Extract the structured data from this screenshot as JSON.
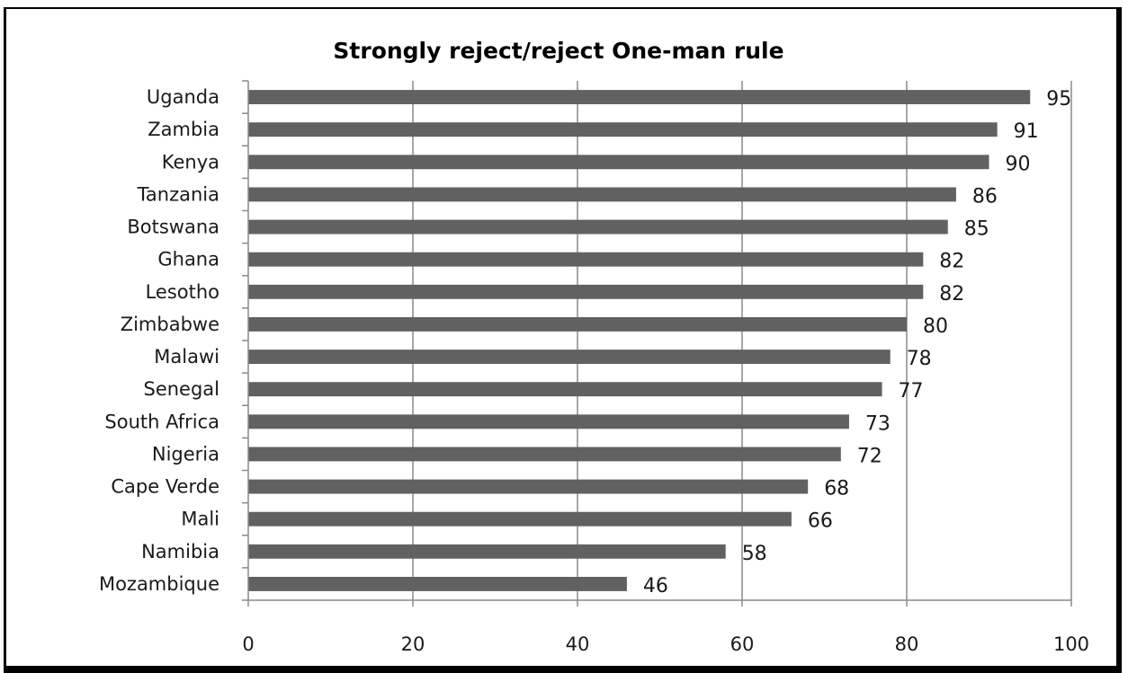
{
  "chart_data": {
    "type": "bar",
    "orientation": "horizontal",
    "title": "Strongly reject/reject One-man rule",
    "categories": [
      "Uganda",
      "Zambia",
      "Kenya",
      "Tanzania",
      "Botswana",
      "Ghana",
      "Lesotho",
      "Zimbabwe",
      "Malawi",
      "Senegal",
      "South Africa",
      "Nigeria",
      "Cape Verde",
      "Mali",
      "Namibia",
      "Mozambique"
    ],
    "values": [
      95,
      91,
      90,
      86,
      85,
      82,
      82,
      80,
      78,
      77,
      73,
      72,
      68,
      66,
      58,
      46
    ],
    "xlim": [
      0,
      100
    ],
    "xticks": [
      0,
      20,
      40,
      60,
      80,
      100
    ],
    "xlabel": "",
    "ylabel": "",
    "grid": "vertical",
    "bar_color": "#616161",
    "legend": "none",
    "data_labels": true
  }
}
